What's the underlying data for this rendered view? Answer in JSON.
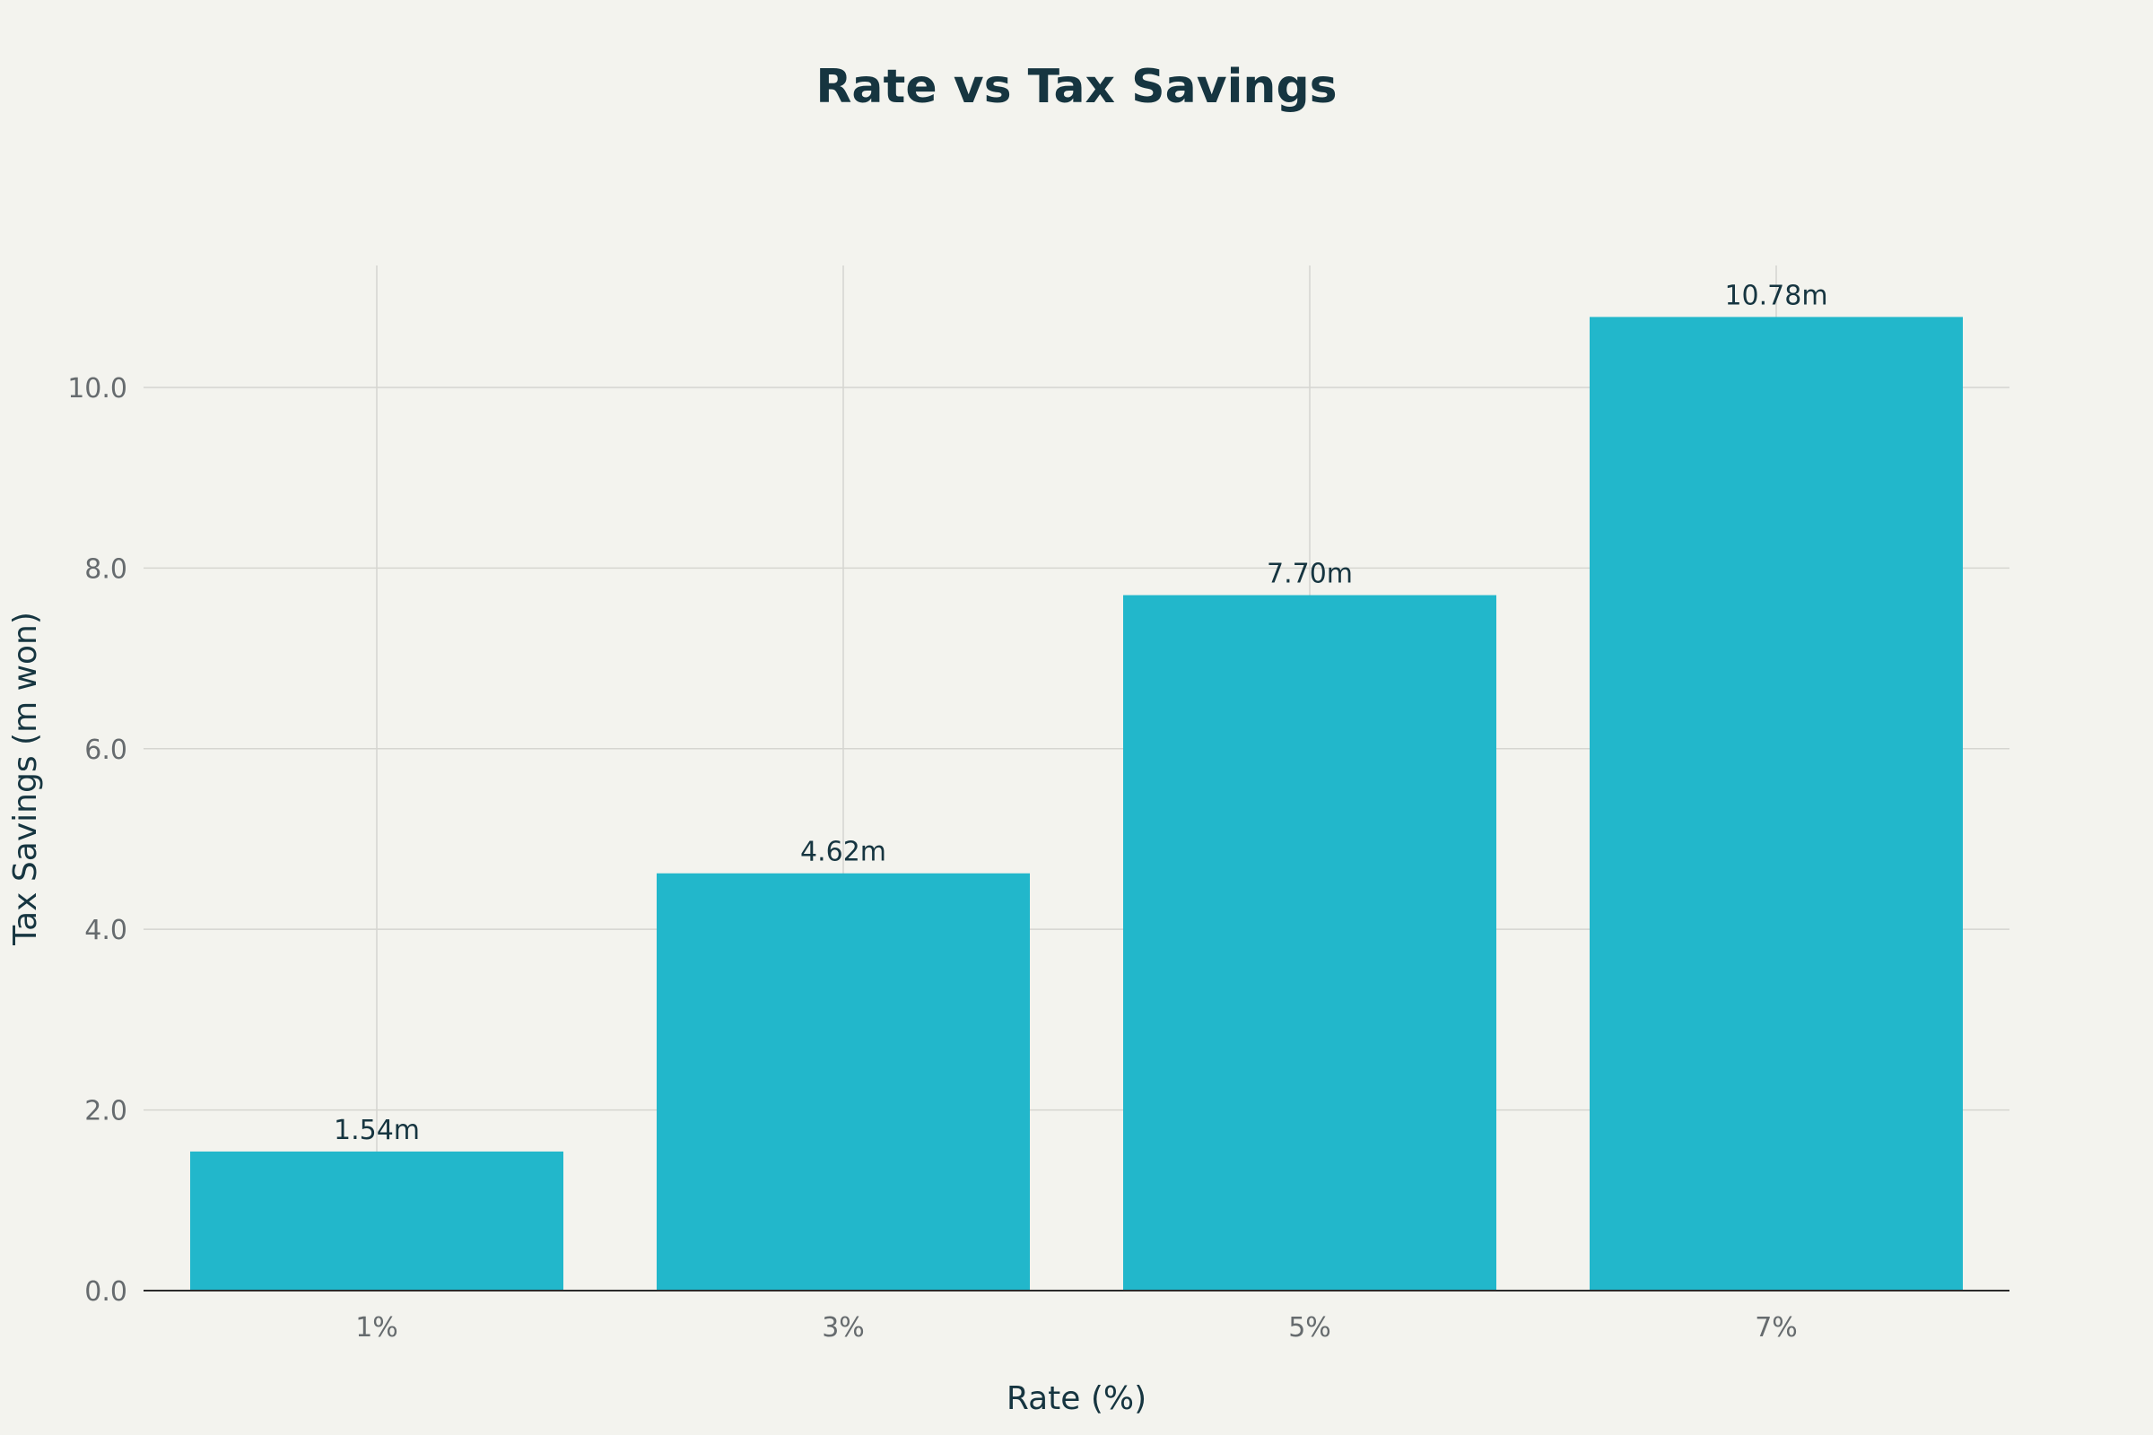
{
  "chart_data": {
    "type": "bar",
    "title": "Rate vs Tax Savings",
    "xlabel": "Rate (%)",
    "ylabel": "Tax Savings (m won)",
    "categories": [
      "1%",
      "3%",
      "5%",
      "7%"
    ],
    "values": [
      1.54,
      4.62,
      7.7,
      10.78
    ],
    "data_labels": [
      "1.54m",
      "4.62m",
      "7.70m",
      "10.78m"
    ],
    "ylim": [
      0,
      11.35
    ],
    "yticks": [
      0,
      2,
      4,
      6,
      8,
      10
    ],
    "ytick_labels": [
      "0.0",
      "2.0",
      "4.0",
      "6.0",
      "8.0",
      "10.0"
    ],
    "grid": true,
    "bar_color": "#22b7cb",
    "background_color": "#f3f3ee"
  }
}
